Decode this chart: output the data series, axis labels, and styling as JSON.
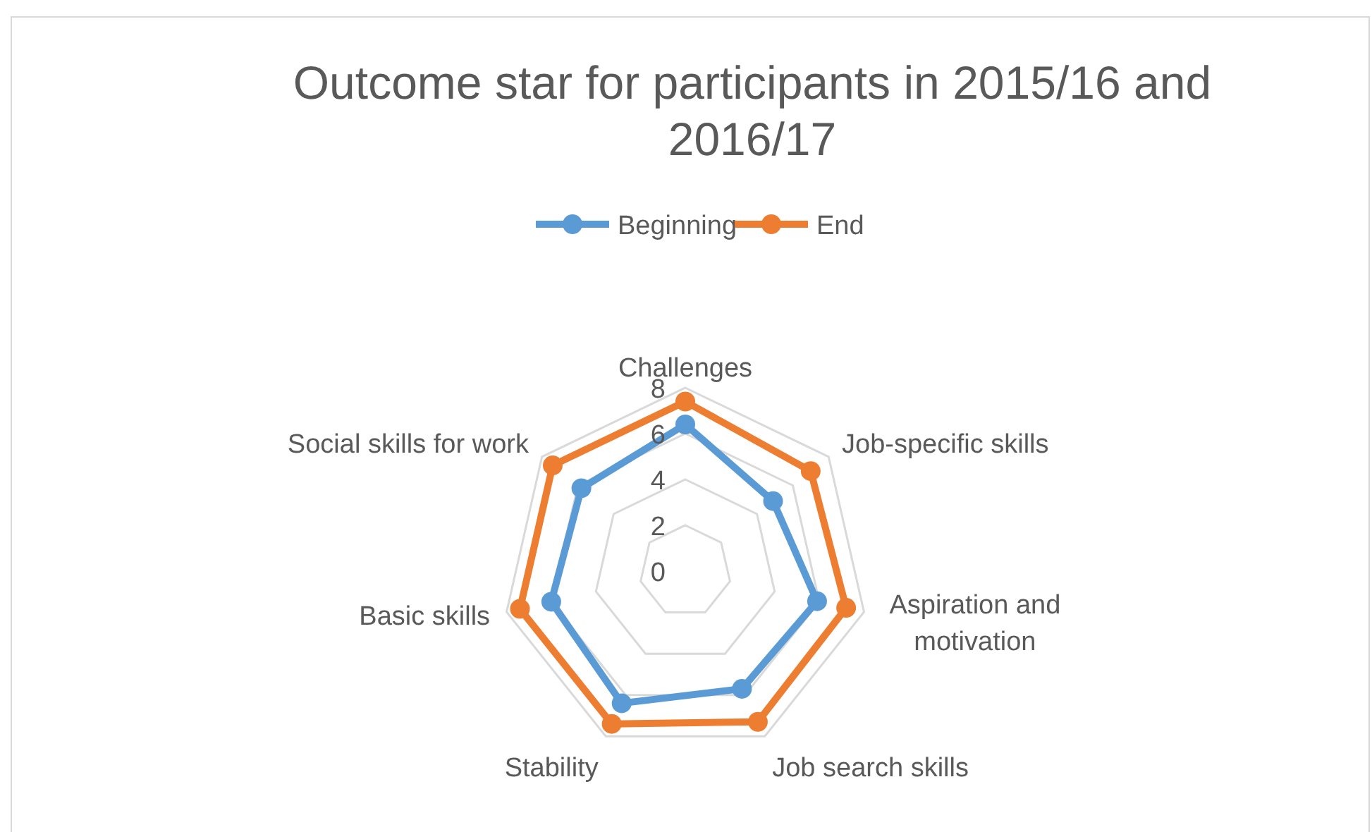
{
  "chart_data": {
    "type": "radar",
    "title": "Outcome star for participants in 2015/16 and 2016/17",
    "categories": [
      "Challenges",
      "Job-specific skills",
      "Aspiration and motivation",
      "Job search skills",
      "Stability",
      "Basic skills",
      "Social skills for work"
    ],
    "series": [
      {
        "name": "Beginning",
        "color": "#5b9bd5",
        "values": [
          6.4,
          4.9,
          5.9,
          5.7,
          6.4,
          6.0,
          5.8
        ]
      },
      {
        "name": "End",
        "color": "#ed7d31",
        "values": [
          7.4,
          7.0,
          7.2,
          7.3,
          7.4,
          7.4,
          7.4
        ]
      }
    ],
    "ylim": [
      0,
      8
    ],
    "yticks": [
      0,
      2,
      4,
      6,
      8
    ],
    "grid": true,
    "legend": "top",
    "marker": "circle",
    "line_style": "solid"
  }
}
